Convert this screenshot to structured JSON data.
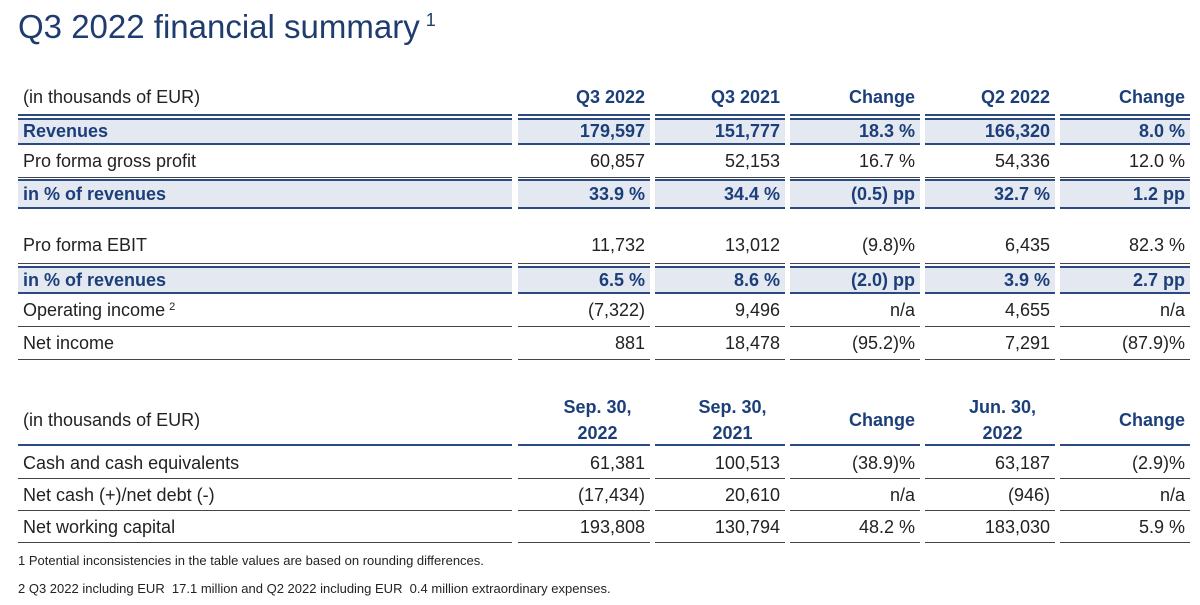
{
  "title": "Q3 2022 financial summary",
  "title_note": "1",
  "tables": [
    {
      "header": [
        "(in thousands of EUR)",
        "Q3 2022",
        "Q3 2021",
        "Change",
        "Q2 2022",
        "Change"
      ],
      "rows": [
        {
          "cells": [
            "Revenues",
            "179,597",
            "151,777",
            "18.3 %",
            "166,320",
            "8.0 %"
          ],
          "highlight": true
        },
        {
          "cells": [
            "Pro forma gross profit",
            "60,857",
            "52,153",
            "16.7 %",
            "54,336",
            "12.0 %"
          ],
          "highlight": false
        },
        {
          "cells": [
            "in % of revenues",
            "33.9 %",
            "34.4 %",
            "(0.5) pp",
            "32.7 %",
            "1.2 pp"
          ],
          "highlight": true
        },
        {
          "cells": [
            "Pro forma EBIT",
            "11,732",
            "13,012",
            "(9.8)%",
            "6,435",
            "82.3 %"
          ],
          "highlight": false
        },
        {
          "cells": [
            "in % of revenues",
            "6.5 %",
            "8.6 %",
            "(2.0) pp",
            "3.9 %",
            "2.7 pp"
          ],
          "highlight": true
        },
        {
          "cells": [
            "Operating income",
            "(7,322)",
            "9,496",
            "n/a",
            "4,655",
            "n/a"
          ],
          "note": "2",
          "highlight": false
        },
        {
          "cells": [
            "Net income",
            "881",
            "18,478",
            "(95.2)%",
            "7,291",
            "(87.9)%"
          ],
          "highlight": false
        }
      ]
    },
    {
      "header": [
        "(in thousands of EUR)",
        "Sep. 30, 2022",
        "Sep. 30, 2021",
        "Change",
        "Jun. 30, 2022",
        "Change"
      ],
      "rows": [
        {
          "cells": [
            "Cash and cash equivalents",
            "61,381",
            "100,513",
            "(38.9)%",
            "63,187",
            "(2.9)%"
          ],
          "highlight": false
        },
        {
          "cells": [
            "Net cash (+)/net debt (-)",
            "(17,434)",
            "20,610",
            "n/a",
            "(946)",
            "n/a"
          ],
          "highlight": false
        },
        {
          "cells": [
            "Net working capital",
            "193,808",
            "130,794",
            "48.2 %",
            "183,030",
            "5.9 %"
          ],
          "highlight": false
        }
      ]
    }
  ],
  "footnotes": [
    "1 Potential inconsistencies in the table values are based on rounding differences.",
    "2 Q3 2022 including EUR  17.1 million and Q2 2022 including EUR  0.4 million extraordinary expenses."
  ]
}
